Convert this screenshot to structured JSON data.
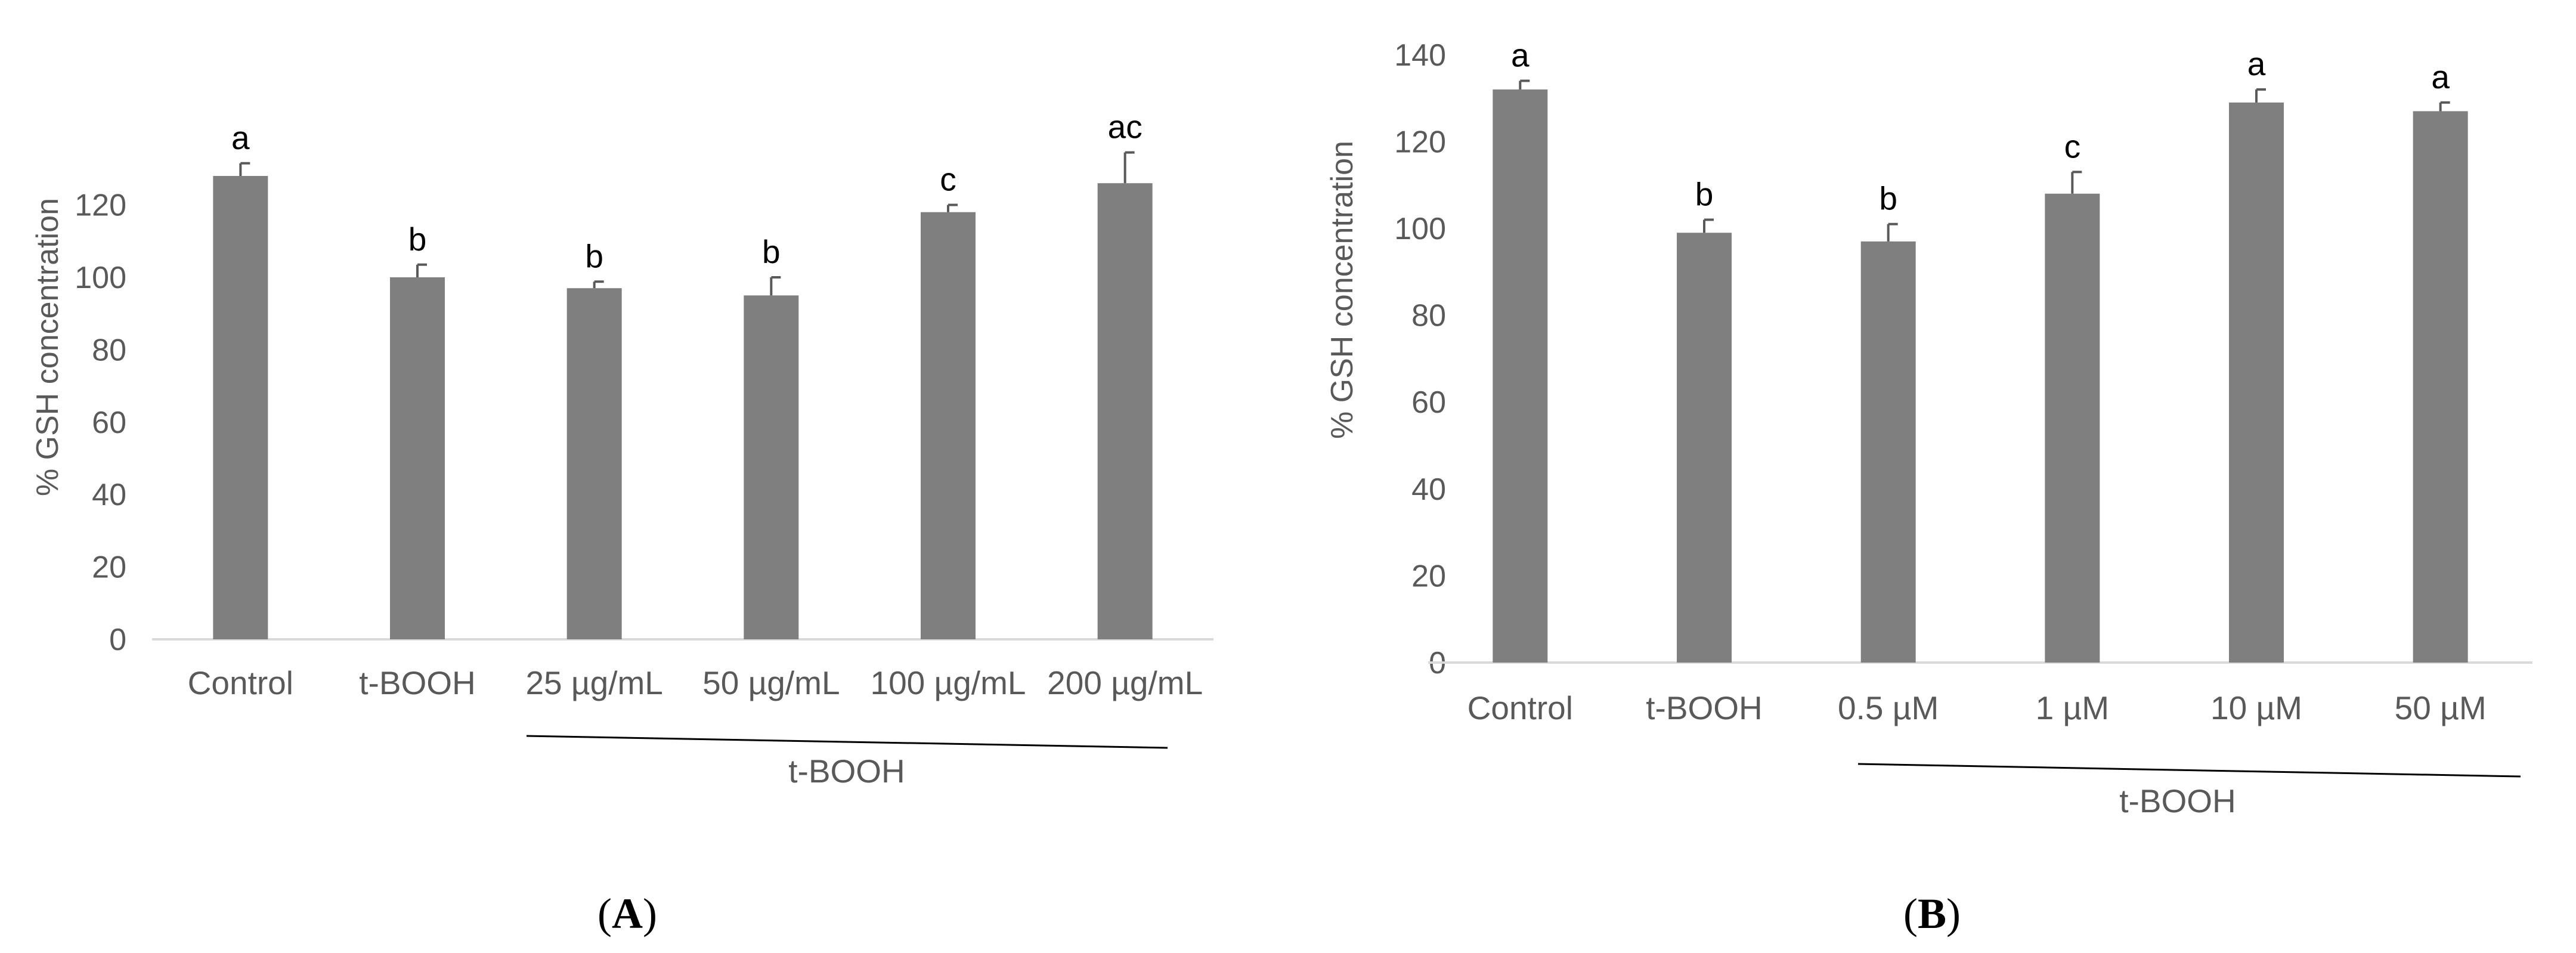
{
  "chart_data": [
    {
      "panel_label": "(A)",
      "panel_letter": "A",
      "type": "bar",
      "ylabel": "% GSH concentration",
      "xlabel": "",
      "ylim": [
        0,
        140
      ],
      "yticks": [
        0,
        20,
        40,
        60,
        80,
        100,
        120
      ],
      "categories": [
        "Control",
        "t-BOOH",
        "25 µg/mL",
        "50 µg/mL",
        "100 µg/mL",
        "200 µg/mL"
      ],
      "values": [
        128,
        100,
        97,
        95,
        118,
        126
      ],
      "errors": [
        3.5,
        3.5,
        1.8,
        5,
        2,
        8.5
      ],
      "significance_letters": [
        "a",
        "b",
        "b",
        "b",
        "c",
        "ac"
      ],
      "group_label": "t-BOOH",
      "bar_color": "#7f7f7f",
      "grid": false
    },
    {
      "panel_label": "(B)",
      "panel_letter": "B",
      "type": "bar",
      "ylabel": "% GSH concentration",
      "xlabel": "",
      "ylim": [
        0,
        140
      ],
      "yticks": [
        0,
        20,
        40,
        60,
        80,
        100,
        120,
        140
      ],
      "categories": [
        "Control",
        "t-BOOH",
        "0.5 µM",
        "1 µM",
        "10 µM",
        "50 µM"
      ],
      "values": [
        132,
        99,
        97,
        108,
        129,
        127
      ],
      "errors": [
        2,
        3,
        4,
        5,
        3,
        2
      ],
      "significance_letters": [
        "a",
        "b",
        "b",
        "c",
        "a",
        "a"
      ],
      "group_label": "t-BOOH",
      "bar_color": "#7f7f7f",
      "grid": false
    }
  ]
}
